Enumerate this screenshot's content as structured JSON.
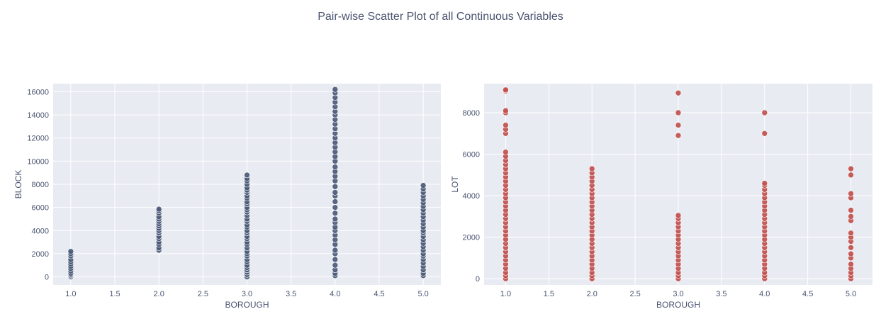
{
  "title": "Pair-wise Scatter Plot of all Continuous Variables",
  "colors": {
    "panel_bg": "#e9ebf2",
    "grid": "#ffffff",
    "text": "#4a5470",
    "series_1": "#4a5a78",
    "series_2": "#c0504d"
  },
  "chart_data": [
    {
      "type": "scatter",
      "title": "",
      "xlabel": "BOROUGH",
      "ylabel": "BLOCK",
      "xlim": [
        0.8,
        5.2
      ],
      "ylim": [
        -700,
        16700
      ],
      "xticks": [
        1.0,
        1.5,
        2.0,
        2.5,
        3.0,
        3.5,
        4.0,
        4.5,
        5.0
      ],
      "xtick_labels": [
        "1.0",
        "1.5",
        "2.0",
        "2.5",
        "3.0",
        "3.5",
        "4.0",
        "4.5",
        "5.0"
      ],
      "yticks": [
        0,
        2000,
        4000,
        6000,
        8000,
        10000,
        12000,
        14000,
        16000
      ],
      "ytick_labels": [
        "0",
        "2000",
        "4000",
        "6000",
        "8000",
        "10000",
        "12000",
        "14000",
        "16000"
      ],
      "grid": true,
      "color": "#4a5a78",
      "series": [
        {
          "x": 1.0,
          "y": [
            0,
            100,
            200,
            300,
            500,
            700,
            900,
            1100,
            1300,
            1500,
            1800,
            2000,
            2200
          ]
        },
        {
          "x": 2.0,
          "y": [
            2300,
            2500,
            2800,
            3000,
            3300,
            3500,
            3800,
            4000,
            4200,
            4400,
            4600,
            4800,
            5000,
            5200,
            5500,
            5700,
            5850
          ]
        },
        {
          "x": 3.0,
          "y": [
            0,
            200,
            400,
            600,
            800,
            1000,
            1300,
            1500,
            1800,
            2000,
            2200,
            2500,
            2800,
            3000,
            3300,
            3500,
            3800,
            4000,
            4300,
            4500,
            4800,
            5000,
            5300,
            5600,
            5800,
            6000,
            6300,
            6500,
            6800,
            7000,
            7300,
            7500,
            7700,
            8000,
            8300,
            8500,
            8800
          ]
        },
        {
          "x": 4.0,
          "y": [
            100,
            300,
            600,
            1000,
            1500,
            2000,
            2300,
            2800,
            3200,
            3600,
            4000,
            4300,
            4700,
            5000,
            5500,
            6000,
            6500,
            7000,
            7300,
            7800,
            8300,
            8700,
            9100,
            9500,
            10000,
            10400,
            10800,
            11200,
            11600,
            12000,
            12400,
            12800,
            13200,
            13600,
            14000,
            14300,
            14700,
            15100,
            15500,
            15900,
            16200
          ]
        },
        {
          "x": 5.0,
          "y": [
            100,
            300,
            600,
            900,
            1200,
            1500,
            1800,
            2000,
            2300,
            2600,
            2900,
            3200,
            3500,
            3800,
            4000,
            4300,
            4600,
            4900,
            5200,
            5500,
            5800,
            6100,
            6400,
            6700,
            7000,
            7300,
            7600,
            7900
          ]
        }
      ]
    },
    {
      "type": "scatter",
      "title": "",
      "xlabel": "BOROUGH",
      "ylabel": "LOT",
      "xlim": [
        0.75,
        5.25
      ],
      "ylim": [
        -300,
        9400
      ],
      "xticks": [
        1.0,
        1.5,
        2.0,
        2.5,
        3.0,
        3.5,
        4.0,
        4.5,
        5.0
      ],
      "xtick_labels": [
        "1.0",
        "1.5",
        "2.0",
        "2.5",
        "3.0",
        "3.5",
        "4.0",
        "4.5",
        "5.0"
      ],
      "yticks": [
        0,
        2000,
        4000,
        6000,
        8000
      ],
      "ytick_labels": [
        "0",
        "2000",
        "4000",
        "6000",
        "8000"
      ],
      "grid": true,
      "color": "#c0504d",
      "series": [
        {
          "x": 1.0,
          "y": [
            0,
            150,
            300,
            500,
            700,
            900,
            1100,
            1300,
            1500,
            1700,
            1900,
            2100,
            2300,
            2500,
            2700,
            2900,
            3100,
            3300,
            3500,
            3700,
            3900,
            4100,
            4300,
            4500,
            4700,
            4900,
            5100,
            5300,
            5500,
            5700,
            5900,
            6100,
            7000,
            7200,
            7400,
            8000,
            8100,
            9050,
            9100
          ]
        },
        {
          "x": 2.0,
          "y": [
            0,
            150,
            300,
            500,
            700,
            900,
            1100,
            1300,
            1500,
            1700,
            1900,
            2100,
            2300,
            2500,
            2700,
            2900,
            3100,
            3300,
            3500,
            3700,
            3900,
            4100,
            4300,
            4500,
            4700,
            4900,
            5100,
            5300
          ]
        },
        {
          "x": 3.0,
          "y": [
            0,
            150,
            300,
            500,
            700,
            900,
            1100,
            1300,
            1500,
            1700,
            1900,
            2100,
            2300,
            2500,
            2700,
            2900,
            3050,
            6900,
            7400,
            8000,
            8950
          ]
        },
        {
          "x": 4.0,
          "y": [
            0,
            150,
            300,
            500,
            700,
            900,
            1100,
            1300,
            1500,
            1700,
            1900,
            2100,
            2300,
            2500,
            2700,
            2900,
            3100,
            3300,
            3500,
            3700,
            3900,
            4100,
            4300,
            4500,
            4600,
            7000,
            8000
          ]
        },
        {
          "x": 5.0,
          "y": [
            0,
            150,
            300,
            500,
            700,
            1000,
            1200,
            1500,
            1800,
            2000,
            2200,
            2800,
            3000,
            3300,
            3900,
            4100,
            5000,
            5300
          ]
        }
      ]
    }
  ]
}
